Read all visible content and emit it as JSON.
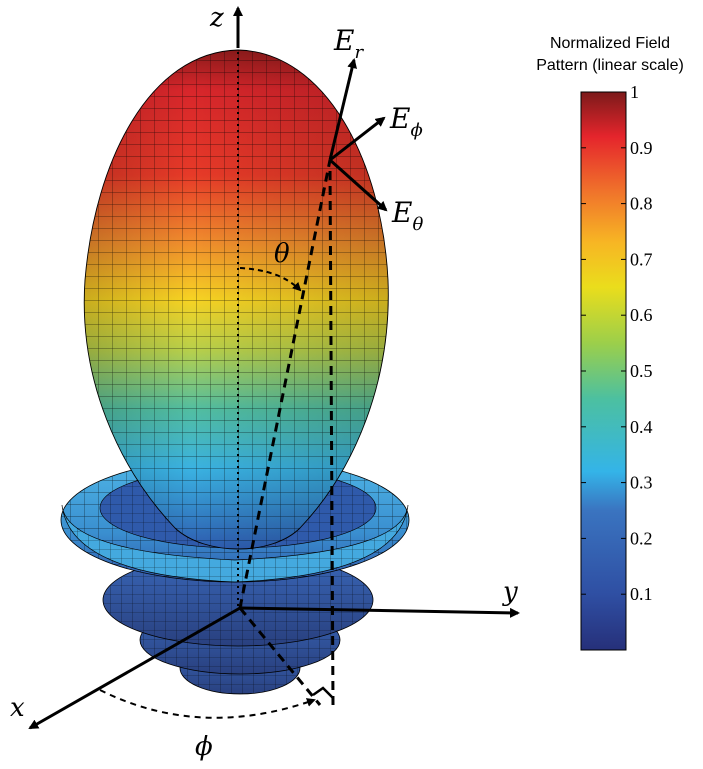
{
  "axes": {
    "x": "x",
    "y": "y",
    "z": "z"
  },
  "vectors": {
    "E_r": [
      "E",
      "r"
    ],
    "E_phi": [
      "E",
      "ϕ"
    ],
    "E_theta": [
      "E",
      "θ"
    ]
  },
  "angles": {
    "theta": "θ",
    "phi": "ϕ"
  },
  "colorbar": {
    "title_line1": "Normalized Field",
    "title_line2": "Pattern (linear scale)",
    "ticks": [
      "1",
      "0.9",
      "0.8",
      "0.7",
      "0.6",
      "0.5",
      "0.4",
      "0.3",
      "0.2",
      "0.1"
    ],
    "tick_values": [
      1,
      0.9,
      0.8,
      0.7,
      0.6,
      0.5,
      0.4,
      0.3,
      0.2,
      0.1
    ],
    "range": [
      0,
      1
    ],
    "colormap": [
      "#00008f",
      "#0000ff",
      "#00ffff",
      "#ffff00",
      "#ff0000",
      "#800000"
    ]
  }
}
